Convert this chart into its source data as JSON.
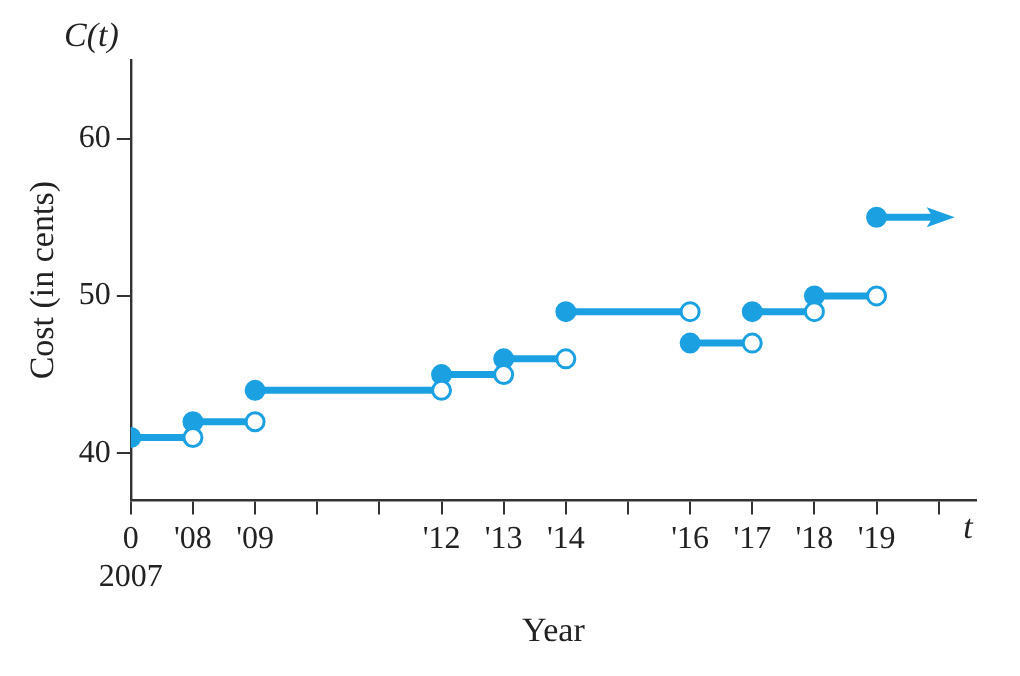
{
  "chart_data": {
    "type": "line",
    "xlabel": "Year",
    "ylabel": "Cost (in cents)",
    "annotations": [
      "C(t)",
      "t"
    ],
    "series": [
      {
        "color": "#1ba1e2",
        "x": [
          2007,
          2008
        ],
        "values": [
          41,
          41
        ]
      },
      {
        "color": "#1ba1e2",
        "x": [
          2008,
          2009
        ],
        "values": [
          42,
          42
        ]
      },
      {
        "color": "#1ba1e2",
        "x": [
          2009,
          2012
        ],
        "values": [
          44,
          44
        ]
      },
      {
        "color": "#1ba1e2",
        "x": [
          2012,
          2013
        ],
        "values": [
          45,
          45
        ]
      },
      {
        "color": "#1ba1e2",
        "x": [
          2013,
          2014
        ],
        "values": [
          46,
          46
        ]
      },
      {
        "color": "#1ba1e2",
        "x": [
          2014,
          2016
        ],
        "values": [
          49,
          49
        ]
      },
      {
        "color": "#1ba1e2",
        "x": [
          2016,
          2017
        ],
        "values": [
          47,
          47
        ]
      },
      {
        "color": "#1ba1e2",
        "x": [
          2017,
          2018
        ],
        "values": [
          49,
          49
        ]
      },
      {
        "color": "#1ba1e2",
        "x": [
          2018,
          2019
        ],
        "values": [
          50,
          50
        ]
      },
      {
        "color": "#1ba1e2",
        "x": [
          2019,
          2020
        ],
        "values": [
          55,
          55
        ]
      }
    ],
    "xlim": [
      2007,
      2020.6
    ],
    "xticks": [
      {
        "value": 2007,
        "label": "0\n2007"
      },
      {
        "value": 2008,
        "label": "'08"
      },
      {
        "value": 2009,
        "label": "'09"
      },
      {
        "value": 2010,
        "label": null
      },
      {
        "value": 2011,
        "label": null
      },
      {
        "value": 2012,
        "label": "'12"
      },
      {
        "value": 2013,
        "label": "'13"
      },
      {
        "value": 2014,
        "label": "'14"
      },
      {
        "value": 2015,
        "label": null
      },
      {
        "value": 2016,
        "label": "'16"
      },
      {
        "value": 2017,
        "label": "'17"
      },
      {
        "value": 2018,
        "label": "'18"
      },
      {
        "value": 2019,
        "label": "'19"
      },
      {
        "value": 2020,
        "label": null
      }
    ],
    "ylim": [
      37,
      65
    ],
    "yticks": [
      40,
      50,
      60
    ],
    "grid": false,
    "legend": false,
    "marker": "circle",
    "line_style": "solid"
  }
}
